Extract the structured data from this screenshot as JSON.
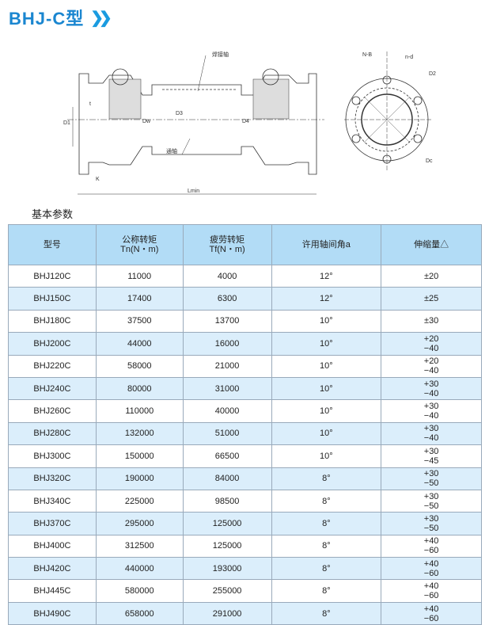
{
  "title": "BHJ-C型",
  "title_icon": "double-chevron-right-icon",
  "drawing_labels": {
    "weld_shaft": "焊接轴",
    "through_shaft": "通轴",
    "d1": "D1",
    "t": "t",
    "dw": "Dw",
    "d3": "D3",
    "d4": "D4",
    "k": "K",
    "lmin": "Lmin",
    "nb": "N-B",
    "nd": "n-d",
    "d2": "D2",
    "dc": "Dc"
  },
  "section_title": "基本参数",
  "table": {
    "headers": [
      [
        "型号",
        ""
      ],
      [
        "公称转矩",
        "Tn(N・m)"
      ],
      [
        "疲劳转矩",
        "Tf(N・m)"
      ],
      [
        "许用轴间角a",
        ""
      ],
      [
        "伸缩量△",
        ""
      ]
    ],
    "rows": [
      [
        "BHJ120C",
        "11000",
        "4000",
        "12°",
        "±20"
      ],
      [
        "BHJ150C",
        "17400",
        "6300",
        "12°",
        "±25"
      ],
      [
        "BHJ180C",
        "37500",
        "13700",
        "10°",
        "±30"
      ],
      [
        "BHJ200C",
        "44000",
        "16000",
        "10°",
        "+20\n−40"
      ],
      [
        "BHJ220C",
        "58000",
        "21000",
        "10°",
        "+20\n−40"
      ],
      [
        "BHJ240C",
        "80000",
        "31000",
        "10°",
        "+30\n−40"
      ],
      [
        "BHJ260C",
        "110000",
        "40000",
        "10°",
        "+30\n−40"
      ],
      [
        "BHJ280C",
        "132000",
        "51000",
        "10°",
        "+30\n−40"
      ],
      [
        "BHJ300C",
        "150000",
        "66500",
        "10°",
        "+30\n−45"
      ],
      [
        "BHJ320C",
        "190000",
        "84000",
        "8°",
        "+30\n−50"
      ],
      [
        "BHJ340C",
        "225000",
        "98500",
        "8°",
        "+30\n−50"
      ],
      [
        "BHJ370C",
        "295000",
        "125000",
        "8°",
        "+30\n−50"
      ],
      [
        "BHJ400C",
        "312500",
        "125000",
        "8°",
        "+40\n−60"
      ],
      [
        "BHJ420C",
        "440000",
        "193000",
        "8°",
        "+40\n−60"
      ],
      [
        "BHJ445C",
        "580000",
        "255000",
        "8°",
        "+40\n−60"
      ],
      [
        "BHJ490C",
        "658000",
        "291000",
        "8°",
        "+40\n−60"
      ]
    ]
  }
}
